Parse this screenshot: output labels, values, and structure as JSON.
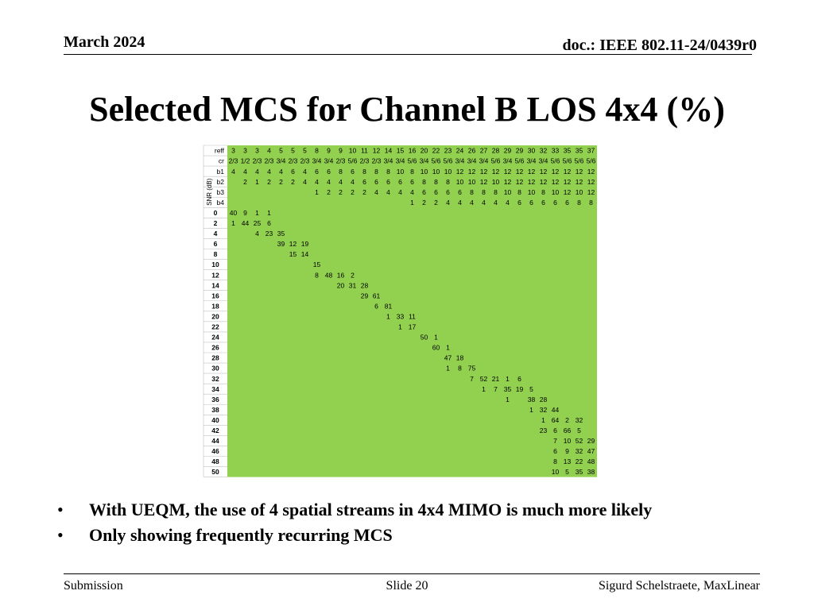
{
  "header": {
    "date": "March 2024",
    "doc": "doc.: IEEE 802.11-24/0439r0"
  },
  "slide": {
    "title": "Selected MCS for Channel B LOS 4x4 (%)",
    "bullets": [
      "With UEQM, the use of 4 spatial streams in 4x4 MIMO is much more likely",
      "Only showing frequently recurring MCS"
    ]
  },
  "footer": {
    "left": "Submission",
    "center": "Slide 20",
    "right": "Sigurd Schelstraete, MaxLinear"
  },
  "colors": {
    "cell_fill": "#92d050",
    "grid": "#c0c0c0",
    "text": "#000000"
  },
  "chart_data": {
    "type": "table",
    "snr_axis_label": "SNR (dB)",
    "header_rows": [
      {
        "label": "reff",
        "values": [
          "3",
          "3",
          "3",
          "4",
          "5",
          "5",
          "5",
          "8",
          "9",
          "9",
          "10",
          "11",
          "12",
          "14",
          "15",
          "16",
          "20",
          "22",
          "23",
          "24",
          "26",
          "27",
          "28",
          "29",
          "29",
          "30",
          "32",
          "33",
          "35",
          "35",
          "37"
        ]
      },
      {
        "label": "cr",
        "values": [
          "2/3",
          "1/2",
          "2/3",
          "2/3",
          "3/4",
          "2/3",
          "2/3",
          "3/4",
          "3/4",
          "2/3",
          "5/6",
          "2/3",
          "2/3",
          "3/4",
          "3/4",
          "5/6",
          "3/4",
          "5/6",
          "5/6",
          "3/4",
          "3/4",
          "3/4",
          "5/6",
          "3/4",
          "5/6",
          "3/4",
          "3/4",
          "5/6",
          "5/6",
          "5/6",
          "5/6"
        ]
      },
      {
        "label": "b1",
        "values": [
          "4",
          "4",
          "4",
          "4",
          "4",
          "6",
          "4",
          "6",
          "6",
          "8",
          "6",
          "8",
          "8",
          "8",
          "10",
          "8",
          "10",
          "10",
          "10",
          "12",
          "12",
          "12",
          "12",
          "12",
          "12",
          "12",
          "12",
          "12",
          "12",
          "12",
          "12"
        ]
      },
      {
        "label": "b2",
        "values": [
          "",
          "2",
          "1",
          "2",
          "2",
          "2",
          "4",
          "4",
          "4",
          "4",
          "4",
          "6",
          "6",
          "6",
          "6",
          "6",
          "8",
          "8",
          "8",
          "10",
          "10",
          "12",
          "10",
          "12",
          "12",
          "12",
          "12",
          "12",
          "12",
          "12",
          "12"
        ]
      },
      {
        "label": "b3",
        "values": [
          "",
          "",
          "",
          "",
          "",
          "",
          "",
          "1",
          "2",
          "2",
          "2",
          "2",
          "4",
          "4",
          "4",
          "4",
          "6",
          "6",
          "6",
          "6",
          "8",
          "8",
          "8",
          "10",
          "8",
          "10",
          "8",
          "10",
          "12",
          "10",
          "12"
        ]
      },
      {
        "label": "b4",
        "values": [
          "",
          "",
          "",
          "",
          "",
          "",
          "",
          "",
          "",
          "",
          "",
          "",
          "",
          "",
          "",
          "1",
          "2",
          "2",
          "4",
          "4",
          "4",
          "4",
          "4",
          "4",
          "6",
          "6",
          "6",
          "6",
          "6",
          "8",
          "8"
        ]
      }
    ],
    "rows": [
      {
        "snr": "0",
        "values": [
          "40",
          "9",
          "1",
          "1",
          "",
          "",
          "",
          "",
          "",
          "",
          "",
          "",
          "",
          "",
          "",
          "",
          "",
          "",
          "",
          "",
          "",
          "",
          "",
          "",
          "",
          "",
          "",
          "",
          "",
          "",
          ""
        ]
      },
      {
        "snr": "2",
        "values": [
          "1",
          "44",
          "25",
          "6",
          "",
          "",
          "",
          "",
          "",
          "",
          "",
          "",
          "",
          "",
          "",
          "",
          "",
          "",
          "",
          "",
          "",
          "",
          "",
          "",
          "",
          "",
          "",
          "",
          "",
          "",
          ""
        ]
      },
      {
        "snr": "4",
        "values": [
          "",
          "",
          "4",
          "23",
          "35",
          "",
          "",
          "",
          "",
          "",
          "",
          "",
          "",
          "",
          "",
          "",
          "",
          "",
          "",
          "",
          "",
          "",
          "",
          "",
          "",
          "",
          "",
          "",
          "",
          "",
          ""
        ]
      },
      {
        "snr": "6",
        "values": [
          "",
          "",
          "",
          "",
          "39",
          "12",
          "19",
          "",
          "",
          "",
          "",
          "",
          "",
          "",
          "",
          "",
          "",
          "",
          "",
          "",
          "",
          "",
          "",
          "",
          "",
          "",
          "",
          "",
          "",
          "",
          ""
        ]
      },
      {
        "snr": "8",
        "values": [
          "",
          "",
          "",
          "",
          "",
          "15",
          "14",
          "",
          "",
          "",
          "",
          "",
          "",
          "",
          "",
          "",
          "",
          "",
          "",
          "",
          "",
          "",
          "",
          "",
          "",
          "",
          "",
          "",
          "",
          "",
          ""
        ]
      },
      {
        "snr": "10",
        "values": [
          "",
          "",
          "",
          "",
          "",
          "",
          "",
          "15",
          "",
          "",
          "",
          "",
          "",
          "",
          "",
          "",
          "",
          "",
          "",
          "",
          "",
          "",
          "",
          "",
          "",
          "",
          "",
          "",
          "",
          "",
          ""
        ]
      },
      {
        "snr": "12",
        "values": [
          "",
          "",
          "",
          "",
          "",
          "",
          "",
          "8",
          "48",
          "16",
          "2",
          "",
          "",
          "",
          "",
          "",
          "",
          "",
          "",
          "",
          "",
          "",
          "",
          "",
          "",
          "",
          "",
          "",
          "",
          "",
          ""
        ]
      },
      {
        "snr": "14",
        "values": [
          "",
          "",
          "",
          "",
          "",
          "",
          "",
          "",
          "",
          "20",
          "31",
          "28",
          "",
          "",
          "",
          "",
          "",
          "",
          "",
          "",
          "",
          "",
          "",
          "",
          "",
          "",
          "",
          "",
          "",
          "",
          ""
        ]
      },
      {
        "snr": "16",
        "values": [
          "",
          "",
          "",
          "",
          "",
          "",
          "",
          "",
          "",
          "",
          "",
          "29",
          "61",
          "",
          "",
          "",
          "",
          "",
          "",
          "",
          "",
          "",
          "",
          "",
          "",
          "",
          "",
          "",
          "",
          "",
          ""
        ]
      },
      {
        "snr": "18",
        "values": [
          "",
          "",
          "",
          "",
          "",
          "",
          "",
          "",
          "",
          "",
          "",
          "",
          "6",
          "81",
          "",
          "",
          "",
          "",
          "",
          "",
          "",
          "",
          "",
          "",
          "",
          "",
          "",
          "",
          "",
          "",
          ""
        ]
      },
      {
        "snr": "20",
        "values": [
          "",
          "",
          "",
          "",
          "",
          "",
          "",
          "",
          "",
          "",
          "",
          "",
          "",
          "1",
          "33",
          "11",
          "",
          "",
          "",
          "",
          "",
          "",
          "",
          "",
          "",
          "",
          "",
          "",
          "",
          "",
          ""
        ]
      },
      {
        "snr": "22",
        "values": [
          "",
          "",
          "",
          "",
          "",
          "",
          "",
          "",
          "",
          "",
          "",
          "",
          "",
          "",
          "1",
          "17",
          "",
          "",
          "",
          "",
          "",
          "",
          "",
          "",
          "",
          "",
          "",
          "",
          "",
          "",
          ""
        ]
      },
      {
        "snr": "24",
        "values": [
          "",
          "",
          "",
          "",
          "",
          "",
          "",
          "",
          "",
          "",
          "",
          "",
          "",
          "",
          "",
          "",
          "50",
          "1",
          "",
          "",
          "",
          "",
          "",
          "",
          "",
          "",
          "",
          "",
          "",
          "",
          ""
        ]
      },
      {
        "snr": "26",
        "values": [
          "",
          "",
          "",
          "",
          "",
          "",
          "",
          "",
          "",
          "",
          "",
          "",
          "",
          "",
          "",
          "",
          "",
          "60",
          "1",
          "",
          "",
          "",
          "",
          "",
          "",
          "",
          "",
          "",
          "",
          "",
          ""
        ]
      },
      {
        "snr": "28",
        "values": [
          "",
          "",
          "",
          "",
          "",
          "",
          "",
          "",
          "",
          "",
          "",
          "",
          "",
          "",
          "",
          "",
          "",
          "",
          "47",
          "18",
          "",
          "",
          "",
          "",
          "",
          "",
          "",
          "",
          "",
          "",
          ""
        ]
      },
      {
        "snr": "30",
        "values": [
          "",
          "",
          "",
          "",
          "",
          "",
          "",
          "",
          "",
          "",
          "",
          "",
          "",
          "",
          "",
          "",
          "",
          "",
          "1",
          "8",
          "75",
          "",
          "",
          "",
          "",
          "",
          "",
          "",
          "",
          "",
          ""
        ]
      },
      {
        "snr": "32",
        "values": [
          "",
          "",
          "",
          "",
          "",
          "",
          "",
          "",
          "",
          "",
          "",
          "",
          "",
          "",
          "",
          "",
          "",
          "",
          "",
          "",
          "7",
          "52",
          "21",
          "1",
          "6",
          "",
          "",
          "",
          "",
          "",
          ""
        ]
      },
      {
        "snr": "34",
        "values": [
          "",
          "",
          "",
          "",
          "",
          "",
          "",
          "",
          "",
          "",
          "",
          "",
          "",
          "",
          "",
          "",
          "",
          "",
          "",
          "",
          "",
          "1",
          "7",
          "35",
          "19",
          "5",
          "",
          "",
          "",
          "",
          ""
        ]
      },
      {
        "snr": "36",
        "values": [
          "",
          "",
          "",
          "",
          "",
          "",
          "",
          "",
          "",
          "",
          "",
          "",
          "",
          "",
          "",
          "",
          "",
          "",
          "",
          "",
          "",
          "",
          "",
          "1",
          "",
          "38",
          "28",
          "",
          "",
          "",
          ""
        ]
      },
      {
        "snr": "38",
        "values": [
          "",
          "",
          "",
          "",
          "",
          "",
          "",
          "",
          "",
          "",
          "",
          "",
          "",
          "",
          "",
          "",
          "",
          "",
          "",
          "",
          "",
          "",
          "",
          "",
          "",
          "1",
          "32",
          "44",
          "",
          "",
          ""
        ]
      },
      {
        "snr": "40",
        "values": [
          "",
          "",
          "",
          "",
          "",
          "",
          "",
          "",
          "",
          "",
          "",
          "",
          "",
          "",
          "",
          "",
          "",
          "",
          "",
          "",
          "",
          "",
          "",
          "",
          "",
          "",
          "1",
          "64",
          "2",
          "32",
          ""
        ]
      },
      {
        "snr": "42",
        "values": [
          "",
          "",
          "",
          "",
          "",
          "",
          "",
          "",
          "",
          "",
          "",
          "",
          "",
          "",
          "",
          "",
          "",
          "",
          "",
          "",
          "",
          "",
          "",
          "",
          "",
          "",
          "23",
          "6",
          "66",
          "5",
          ""
        ]
      },
      {
        "snr": "44",
        "values": [
          "",
          "",
          "",
          "",
          "",
          "",
          "",
          "",
          "",
          "",
          "",
          "",
          "",
          "",
          "",
          "",
          "",
          "",
          "",
          "",
          "",
          "",
          "",
          "",
          "",
          "",
          "",
          "7",
          "10",
          "52",
          "29"
        ]
      },
      {
        "snr": "46",
        "values": [
          "",
          "",
          "",
          "",
          "",
          "",
          "",
          "",
          "",
          "",
          "",
          "",
          "",
          "",
          "",
          "",
          "",
          "",
          "",
          "",
          "",
          "",
          "",
          "",
          "",
          "",
          "",
          "6",
          "9",
          "32",
          "47"
        ]
      },
      {
        "snr": "48",
        "values": [
          "",
          "",
          "",
          "",
          "",
          "",
          "",
          "",
          "",
          "",
          "",
          "",
          "",
          "",
          "",
          "",
          "",
          "",
          "",
          "",
          "",
          "",
          "",
          "",
          "",
          "",
          "",
          "8",
          "13",
          "22",
          "48"
        ]
      },
      {
        "snr": "50",
        "values": [
          "",
          "",
          "",
          "",
          "",
          "",
          "",
          "",
          "",
          "",
          "",
          "",
          "",
          "",
          "",
          "",
          "",
          "",
          "",
          "",
          "",
          "",
          "",
          "",
          "",
          "",
          "",
          "10",
          "5",
          "35",
          "38"
        ]
      }
    ]
  }
}
